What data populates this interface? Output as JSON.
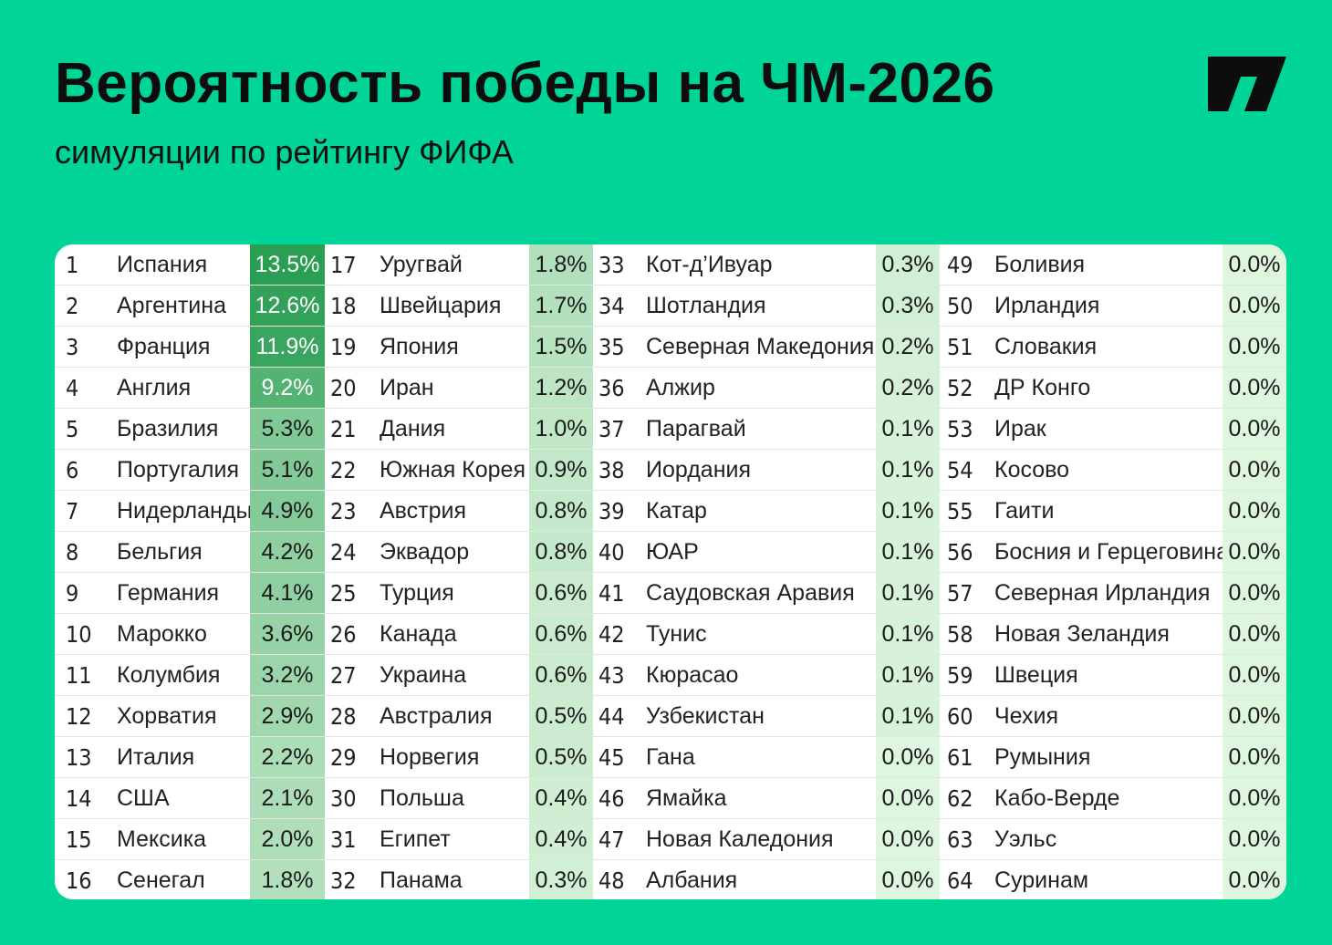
{
  "header": {
    "title": "Вероятность победы на ЧМ-2026",
    "subtitle": "симуляции по рейтингу ФИФА"
  },
  "colors": {
    "background": "#01d497",
    "card": "#ffffff",
    "text": "#0d0d0d"
  },
  "columns": [
    {
      "rows": [
        {
          "rank": "1",
          "team": "Испания",
          "pct": "13.5%",
          "value": 13.5
        },
        {
          "rank": "2",
          "team": "Аргентина",
          "pct": "12.6%",
          "value": 12.6
        },
        {
          "rank": "3",
          "team": "Франция",
          "pct": "11.9%",
          "value": 11.9
        },
        {
          "rank": "4",
          "team": "Англия",
          "pct": "9.2%",
          "value": 9.2
        },
        {
          "rank": "5",
          "team": "Бразилия",
          "pct": "5.3%",
          "value": 5.3
        },
        {
          "rank": "6",
          "team": "Португалия",
          "pct": "5.1%",
          "value": 5.1
        },
        {
          "rank": "7",
          "team": "Нидерланды",
          "pct": "4.9%",
          "value": 4.9
        },
        {
          "rank": "8",
          "team": "Бельгия",
          "pct": "4.2%",
          "value": 4.2
        },
        {
          "rank": "9",
          "team": "Германия",
          "pct": "4.1%",
          "value": 4.1
        },
        {
          "rank": "10",
          "team": "Марокко",
          "pct": "3.6%",
          "value": 3.6
        },
        {
          "rank": "11",
          "team": "Колумбия",
          "pct": "3.2%",
          "value": 3.2
        },
        {
          "rank": "12",
          "team": "Хорватия",
          "pct": "2.9%",
          "value": 2.9
        },
        {
          "rank": "13",
          "team": "Италия",
          "pct": "2.2%",
          "value": 2.2
        },
        {
          "rank": "14",
          "team": "США",
          "pct": "2.1%",
          "value": 2.1
        },
        {
          "rank": "15",
          "team": "Мексика",
          "pct": "2.0%",
          "value": 2.0
        },
        {
          "rank": "16",
          "team": "Сенегал",
          "pct": "1.8%",
          "value": 1.8
        }
      ]
    },
    {
      "rows": [
        {
          "rank": "17",
          "team": "Уругвай",
          "pct": "1.8%",
          "value": 1.8
        },
        {
          "rank": "18",
          "team": "Швейцария",
          "pct": "1.7%",
          "value": 1.7
        },
        {
          "rank": "19",
          "team": "Япония",
          "pct": "1.5%",
          "value": 1.5
        },
        {
          "rank": "20",
          "team": "Иран",
          "pct": "1.2%",
          "value": 1.2
        },
        {
          "rank": "21",
          "team": "Дания",
          "pct": "1.0%",
          "value": 1.0
        },
        {
          "rank": "22",
          "team": "Южная Корея",
          "pct": "0.9%",
          "value": 0.9
        },
        {
          "rank": "23",
          "team": "Австрия",
          "pct": "0.8%",
          "value": 0.8
        },
        {
          "rank": "24",
          "team": "Эквадор",
          "pct": "0.8%",
          "value": 0.8
        },
        {
          "rank": "25",
          "team": "Турция",
          "pct": "0.6%",
          "value": 0.6
        },
        {
          "rank": "26",
          "team": "Канада",
          "pct": "0.6%",
          "value": 0.6
        },
        {
          "rank": "27",
          "team": "Украина",
          "pct": "0.6%",
          "value": 0.6
        },
        {
          "rank": "28",
          "team": "Австралия",
          "pct": "0.5%",
          "value": 0.5
        },
        {
          "rank": "29",
          "team": "Норвегия",
          "pct": "0.5%",
          "value": 0.5
        },
        {
          "rank": "30",
          "team": "Польша",
          "pct": "0.4%",
          "value": 0.4
        },
        {
          "rank": "31",
          "team": "Египет",
          "pct": "0.4%",
          "value": 0.4
        },
        {
          "rank": "32",
          "team": "Панама",
          "pct": "0.3%",
          "value": 0.3
        }
      ]
    },
    {
      "rows": [
        {
          "rank": "33",
          "team": "Кот-д’Ивуар",
          "pct": "0.3%",
          "value": 0.3
        },
        {
          "rank": "34",
          "team": "Шотландия",
          "pct": "0.3%",
          "value": 0.3
        },
        {
          "rank": "35",
          "team": "Северная Македония",
          "pct": "0.2%",
          "value": 0.2
        },
        {
          "rank": "36",
          "team": "Алжир",
          "pct": "0.2%",
          "value": 0.2
        },
        {
          "rank": "37",
          "team": "Парагвай",
          "pct": "0.1%",
          "value": 0.1
        },
        {
          "rank": "38",
          "team": "Иордания",
          "pct": "0.1%",
          "value": 0.1
        },
        {
          "rank": "39",
          "team": "Катар",
          "pct": "0.1%",
          "value": 0.1
        },
        {
          "rank": "40",
          "team": "ЮАР",
          "pct": "0.1%",
          "value": 0.1
        },
        {
          "rank": "41",
          "team": "Саудовская Аравия",
          "pct": "0.1%",
          "value": 0.1
        },
        {
          "rank": "42",
          "team": "Тунис",
          "pct": "0.1%",
          "value": 0.1
        },
        {
          "rank": "43",
          "team": "Кюрасао",
          "pct": "0.1%",
          "value": 0.1
        },
        {
          "rank": "44",
          "team": "Узбекистан",
          "pct": "0.1%",
          "value": 0.1
        },
        {
          "rank": "45",
          "team": "Гана",
          "pct": "0.0%",
          "value": 0.0
        },
        {
          "rank": "46",
          "team": "Ямайка",
          "pct": "0.0%",
          "value": 0.0
        },
        {
          "rank": "47",
          "team": "Новая Каледония",
          "pct": "0.0%",
          "value": 0.0
        },
        {
          "rank": "48",
          "team": "Албания",
          "pct": "0.0%",
          "value": 0.0
        }
      ]
    },
    {
      "rows": [
        {
          "rank": "49",
          "team": "Боливия",
          "pct": "0.0%",
          "value": 0.0
        },
        {
          "rank": "50",
          "team": "Ирландия",
          "pct": "0.0%",
          "value": 0.0
        },
        {
          "rank": "51",
          "team": "Словакия",
          "pct": "0.0%",
          "value": 0.0
        },
        {
          "rank": "52",
          "team": "ДР Конго",
          "pct": "0.0%",
          "value": 0.0
        },
        {
          "rank": "53",
          "team": "Ирак",
          "pct": "0.0%",
          "value": 0.0
        },
        {
          "rank": "54",
          "team": "Косово",
          "pct": "0.0%",
          "value": 0.0
        },
        {
          "rank": "55",
          "team": "Гаити",
          "pct": "0.0%",
          "value": 0.0
        },
        {
          "rank": "56",
          "team": "Босния и Герцеговина",
          "pct": "0.0%",
          "value": 0.0
        },
        {
          "rank": "57",
          "team": "Северная Ирландия",
          "pct": "0.0%",
          "value": 0.0
        },
        {
          "rank": "58",
          "team": "Новая Зеландия",
          "pct": "0.0%",
          "value": 0.0
        },
        {
          "rank": "59",
          "team": "Швеция",
          "pct": "0.0%",
          "value": 0.0
        },
        {
          "rank": "60",
          "team": "Чехия",
          "pct": "0.0%",
          "value": 0.0
        },
        {
          "rank": "61",
          "team": "Румыния",
          "pct": "0.0%",
          "value": 0.0
        },
        {
          "rank": "62",
          "team": "Кабо-Верде",
          "pct": "0.0%",
          "value": 0.0
        },
        {
          "rank": "63",
          "team": "Уэльс",
          "pct": "0.0%",
          "value": 0.0
        },
        {
          "rank": "64",
          "team": "Суринам",
          "pct": "0.0%",
          "value": 0.0
        }
      ]
    }
  ]
}
